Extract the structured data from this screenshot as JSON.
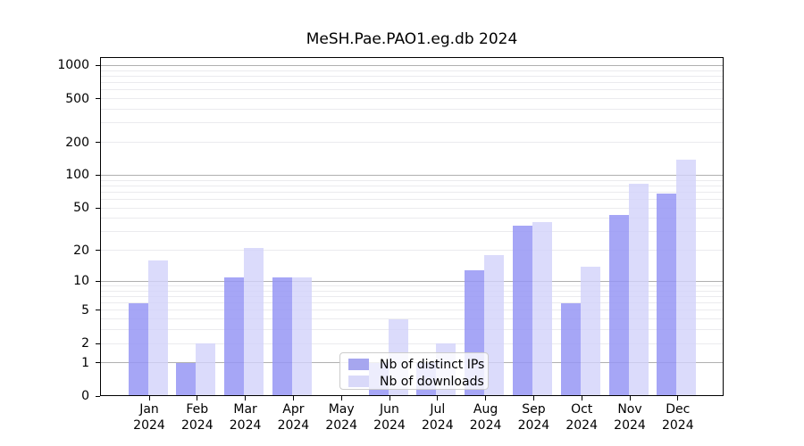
{
  "title": "MeSH.Pae.PAO1.eg.db 2024",
  "legend": {
    "items": [
      {
        "label": "Nb of distinct IPs",
        "swatch_color": "#a6a6ef"
      },
      {
        "label": "Nb of downloads",
        "swatch_color": "#d9d9f9"
      }
    ]
  },
  "chart_data": {
    "type": "bar",
    "title": "MeSH.Pae.PAO1.eg.db 2024",
    "categories": [
      "Jan 2024",
      "Feb 2024",
      "Mar 2024",
      "Apr 2024",
      "May 2024",
      "Jun 2024",
      "Jul 2024",
      "Aug 2024",
      "Sep 2024",
      "Oct 2024",
      "Nov 2024",
      "Dec 2024"
    ],
    "x_months": [
      "Jan",
      "Feb",
      "Mar",
      "Apr",
      "May",
      "Jun",
      "Jul",
      "Aug",
      "Sep",
      "Oct",
      "Nov",
      "Dec"
    ],
    "x_year": "2024",
    "series": [
      {
        "name": "Nb of distinct IPs",
        "fill": "rgba(150,150,245,0.85)",
        "values": [
          6,
          1,
          11,
          11,
          0,
          1,
          1,
          13,
          34,
          6,
          43,
          68
        ]
      },
      {
        "name": "Nb of downloads",
        "fill": "rgba(210,210,250,0.80)",
        "values": [
          16,
          2,
          21,
          11,
          0,
          4,
          2,
          18,
          37,
          14,
          84,
          138
        ]
      }
    ],
    "yscale": "log10(1+x)",
    "ylim": [
      0,
      1200
    ],
    "y_ticks": [
      0,
      1,
      2,
      5,
      10,
      20,
      50,
      100,
      200,
      500,
      1000
    ],
    "y_major_gridlines": [
      1,
      10,
      100,
      1000
    ],
    "y_minor_gridlines": [
      2,
      3,
      4,
      5,
      6,
      7,
      8,
      9,
      20,
      30,
      40,
      50,
      60,
      70,
      80,
      90,
      200,
      300,
      400,
      500,
      600,
      700,
      800,
      900
    ],
    "grid": "on",
    "legend_position": "lower center",
    "axis_color": "#000000",
    "major_grid_color": "#b0b0b0",
    "minor_grid_color": "#ebebee"
  }
}
